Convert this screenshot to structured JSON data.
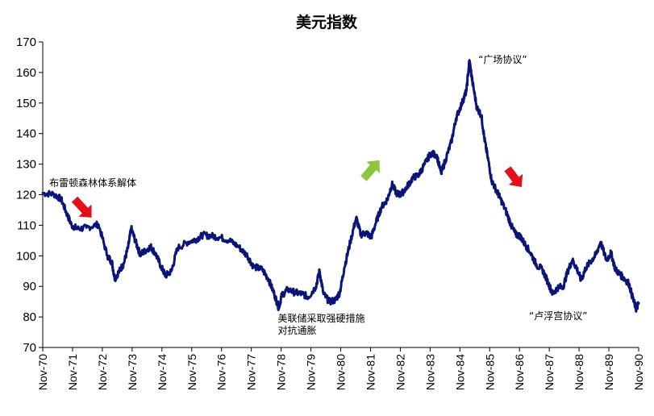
{
  "chart_data": {
    "type": "line",
    "title": "美元指数",
    "xlabel": "",
    "ylabel": "",
    "ylim": [
      70,
      170
    ],
    "yticks": [
      70,
      80,
      90,
      100,
      110,
      120,
      130,
      140,
      150,
      160,
      170
    ],
    "xlim": [
      1970.83,
      1990.83
    ],
    "xticks": [
      {
        "year": 1970.83,
        "label": "Nov-70"
      },
      {
        "year": 1971.83,
        "label": "Nov-71"
      },
      {
        "year": 1972.83,
        "label": "Nov-72"
      },
      {
        "year": 1973.83,
        "label": "Nov-73"
      },
      {
        "year": 1974.83,
        "label": "Nov-74"
      },
      {
        "year": 1975.83,
        "label": "Nov-75"
      },
      {
        "year": 1976.83,
        "label": "Nov-76"
      },
      {
        "year": 1977.83,
        "label": "Nov-77"
      },
      {
        "year": 1978.83,
        "label": "Nov-78"
      },
      {
        "year": 1979.83,
        "label": "Nov-79"
      },
      {
        "year": 1980.83,
        "label": "Nov-80"
      },
      {
        "year": 1981.83,
        "label": "Nov-81"
      },
      {
        "year": 1982.83,
        "label": "Nov-82"
      },
      {
        "year": 1983.83,
        "label": "Nov-83"
      },
      {
        "year": 1984.83,
        "label": "Nov-84"
      },
      {
        "year": 1985.83,
        "label": "Nov-85"
      },
      {
        "year": 1986.83,
        "label": "Nov-86"
      },
      {
        "year": 1987.83,
        "label": "Nov-87"
      },
      {
        "year": 1988.83,
        "label": "Nov-88"
      },
      {
        "year": 1989.83,
        "label": "Nov-89"
      },
      {
        "year": 1990.83,
        "label": "Nov-90"
      }
    ],
    "series": [
      {
        "name": "美元指数",
        "color": "#0b1577",
        "points": [
          [
            1970.83,
            120.5
          ],
          [
            1971.2,
            120.2
          ],
          [
            1971.45,
            118.5
          ],
          [
            1971.65,
            113.5
          ],
          [
            1971.8,
            110.0
          ],
          [
            1972.0,
            108.8
          ],
          [
            1972.3,
            109.2
          ],
          [
            1972.7,
            110.3
          ],
          [
            1973.0,
            100.0
          ],
          [
            1973.15,
            98.0
          ],
          [
            1973.25,
            92.5
          ],
          [
            1973.4,
            95.0
          ],
          [
            1973.55,
            97.5
          ],
          [
            1973.7,
            103.0
          ],
          [
            1973.8,
            109.0
          ],
          [
            1973.95,
            104.5
          ],
          [
            1974.1,
            100.5
          ],
          [
            1974.25,
            101.5
          ],
          [
            1974.45,
            103.0
          ],
          [
            1974.6,
            101.0
          ],
          [
            1974.8,
            96.5
          ],
          [
            1974.95,
            93.5
          ],
          [
            1975.15,
            95.0
          ],
          [
            1975.35,
            102.5
          ],
          [
            1975.7,
            104.5
          ],
          [
            1976.0,
            105.5
          ],
          [
            1976.2,
            106.8
          ],
          [
            1976.5,
            106.5
          ],
          [
            1976.8,
            106.0
          ],
          [
            1977.1,
            105.0
          ],
          [
            1977.4,
            103.0
          ],
          [
            1977.7,
            100.0
          ],
          [
            1977.9,
            96.5
          ],
          [
            1978.2,
            95.5
          ],
          [
            1978.4,
            92.5
          ],
          [
            1978.6,
            87.5
          ],
          [
            1978.75,
            83.0
          ],
          [
            1978.85,
            87.0
          ],
          [
            1979.05,
            89.0
          ],
          [
            1979.3,
            88.0
          ],
          [
            1979.55,
            87.5
          ],
          [
            1979.75,
            86.5
          ],
          [
            1980.0,
            90.0
          ],
          [
            1980.12,
            95.0
          ],
          [
            1980.25,
            87.5
          ],
          [
            1980.45,
            85.0
          ],
          [
            1980.65,
            85.5
          ],
          [
            1980.8,
            88.0
          ],
          [
            1980.95,
            96.0
          ],
          [
            1981.15,
            104.5
          ],
          [
            1981.35,
            112.5
          ],
          [
            1981.5,
            107.0
          ],
          [
            1981.7,
            107.5
          ],
          [
            1981.85,
            106.0
          ],
          [
            1982.0,
            110.5
          ],
          [
            1982.2,
            116.0
          ],
          [
            1982.4,
            118.5
          ],
          [
            1982.55,
            123.5
          ],
          [
            1982.7,
            120.5
          ],
          [
            1982.85,
            120.0
          ],
          [
            1983.05,
            122.5
          ],
          [
            1983.25,
            125.5
          ],
          [
            1983.45,
            126.5
          ],
          [
            1983.65,
            130.0
          ],
          [
            1983.85,
            133.5
          ],
          [
            1984.05,
            133.0
          ],
          [
            1984.2,
            127.0
          ],
          [
            1984.35,
            131.5
          ],
          [
            1984.55,
            137.5
          ],
          [
            1984.7,
            145.0
          ],
          [
            1984.9,
            150.0
          ],
          [
            1985.05,
            154.0
          ],
          [
            1985.15,
            164.0
          ],
          [
            1985.25,
            157.0
          ],
          [
            1985.4,
            148.5
          ],
          [
            1985.55,
            146.0
          ],
          [
            1985.65,
            138.5
          ],
          [
            1985.75,
            133.0
          ],
          [
            1985.9,
            124.5
          ],
          [
            1986.05,
            121.5
          ],
          [
            1986.2,
            118.5
          ],
          [
            1986.4,
            114.0
          ],
          [
            1986.55,
            110.0
          ],
          [
            1986.7,
            107.0
          ],
          [
            1986.85,
            106.5
          ],
          [
            1987.0,
            104.0
          ],
          [
            1987.2,
            101.0
          ],
          [
            1987.4,
            97.0
          ],
          [
            1987.6,
            95.5
          ],
          [
            1987.8,
            91.0
          ],
          [
            1987.95,
            87.5
          ],
          [
            1988.1,
            89.5
          ],
          [
            1988.3,
            90.0
          ],
          [
            1988.45,
            95.0
          ],
          [
            1988.6,
            98.5
          ],
          [
            1988.75,
            96.0
          ],
          [
            1988.9,
            92.0
          ],
          [
            1989.05,
            96.0
          ],
          [
            1989.25,
            98.5
          ],
          [
            1989.4,
            100.5
          ],
          [
            1989.55,
            104.5
          ],
          [
            1989.75,
            98.5
          ],
          [
            1989.9,
            101.0
          ],
          [
            1990.05,
            95.5
          ],
          [
            1990.2,
            94.0
          ],
          [
            1990.35,
            92.5
          ],
          [
            1990.5,
            91.0
          ],
          [
            1990.65,
            85.5
          ],
          [
            1990.75,
            82.5
          ],
          [
            1990.83,
            84.5
          ]
        ]
      }
    ],
    "annotations": [
      {
        "lines": [
          "布雷顿森林体系解体"
        ],
        "x": 1971.05,
        "y": 122.8
      },
      {
        "lines": [
          "“广场协议”"
        ],
        "x": 1985.45,
        "y": 163.2
      },
      {
        "lines": [
          "美联储采取强硬措施",
          "对抗通胀"
        ],
        "x": 1978.72,
        "y": 78.5
      },
      {
        "lines": [
          "“卢浮宫协议”"
        ],
        "x": 1987.15,
        "y": 79.2
      }
    ],
    "arrows": [
      {
        "name": "down-arrow-1971",
        "color": "#e3101a",
        "x1": 1971.9,
        "y1": 118.5,
        "x2": 1972.47,
        "y2": 112.5
      },
      {
        "name": "up-arrow-1981",
        "color": "#8cc63f",
        "x1": 1981.6,
        "y1": 125.3,
        "x2": 1982.13,
        "y2": 131.3
      },
      {
        "name": "down-arrow-1985",
        "color": "#e3101a",
        "x1": 1986.43,
        "y1": 128.5,
        "x2": 1986.9,
        "y2": 122.5
      }
    ]
  }
}
